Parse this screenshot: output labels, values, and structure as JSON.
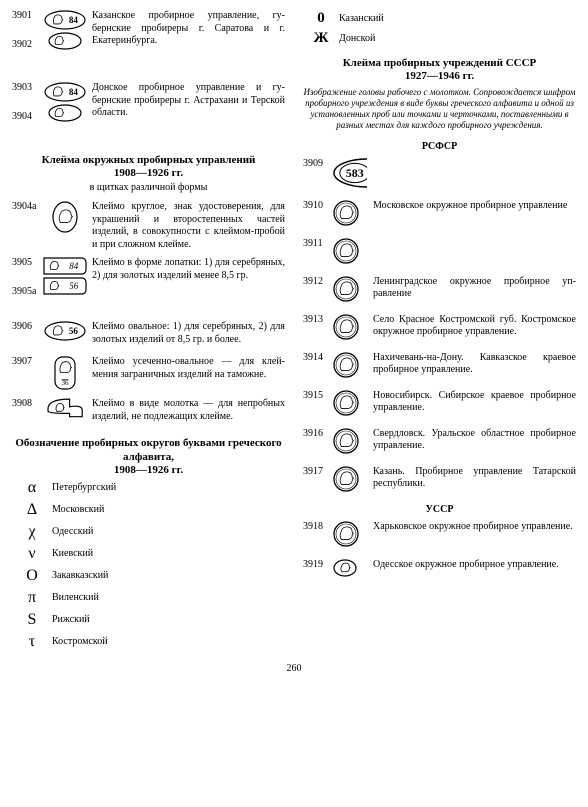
{
  "left": {
    "top_entries": [
      {
        "ids": [
          "3901",
          "3902"
        ],
        "mark_type": "double-oval-84",
        "desc": "Казанское пробирное управление, гу­бернские пробиреры г. Саратова и г. Екатеринбурга."
      },
      {
        "ids": [
          "3903",
          "3904"
        ],
        "mark_type": "double-oval-84",
        "desc": "Донское пробирное управление и гу­бернские пробиреры г. Астрахани и Тер­ской области."
      }
    ],
    "section1_title": "Клейма окружных пробирных управлений",
    "section1_years": "1908—1926 гг.",
    "section1_sub": "в щитках различной формы",
    "section1_entries": [
      {
        "ids": [
          "3904а"
        ],
        "mark_type": "shield-round",
        "desc": "Клеймо круглое, знак удостоверения, для украшений и второстепенных ча­стей изделий, в совокупности с клей­мом-пробой и при сложном клейме."
      },
      {
        "ids": [
          "3905",
          "3905а"
        ],
        "mark_type": "spade-84-56",
        "desc": "Клеймо в форме лопатки: 1) для сереб­ряных, 2) для золотых изделий менее 8,5 гр."
      },
      {
        "ids": [
          "3906"
        ],
        "mark_type": "oval-56",
        "desc": "Клеймо овальное: 1) для серебряных, 2) для золотых изделий от 8,5 гр. и бо­лее."
      },
      {
        "ids": [
          "3907"
        ],
        "mark_type": "trunc-oval",
        "desc": "Клеймо усеченно-овальное — для клей­мения заграничных изделий на тамож­не."
      },
      {
        "ids": [
          "3908"
        ],
        "mark_type": "hammer",
        "desc": "Клеймо в виде молотка — для непро­бных изделий, не подлежащих клейме."
      }
    ],
    "section2_title": "Обозначение пробирных округов буквами греческого алфавита,",
    "section2_years": "1908—1926 гг.",
    "letters": [
      {
        "sym": "α",
        "city": "Петербургский"
      },
      {
        "sym": "Δ",
        "city": "Московский"
      },
      {
        "sym": "χ",
        "city": "Одесский"
      },
      {
        "sym": "ν",
        "city": "Киевский"
      },
      {
        "sym": "Ο",
        "city": "Закавказский"
      },
      {
        "sym": "π",
        "city": "Виленский"
      },
      {
        "sym": "S",
        "city": "Рижский"
      },
      {
        "sym": "τ",
        "city": "Костромской"
      }
    ]
  },
  "right": {
    "top_letters": [
      {
        "sym": "0",
        "city": "Казанский"
      },
      {
        "sym": "Ж",
        "city": "Донской"
      }
    ],
    "main_title": "Клейма пробирных учреждений СССР",
    "main_years": "1927—1946 гг.",
    "intro": "Изображение головы рабочего с молотком. Сопровождается шифром пробирного учреждения в виде буквы греческого алфавита и одной из установленных проб или точками и черточками, поставленными в разных местах для каждого пробирного учреждения.",
    "groups": [
      {
        "head": "РСФСР",
        "entries": [
          {
            "id": "3909",
            "mark": "big-oval-583",
            "desc": ""
          },
          {
            "id": "3910",
            "mark": "circle",
            "desc": "Московское окружное пробирное управ­ление"
          },
          {
            "id": "3911",
            "mark": "circle",
            "desc": ""
          },
          {
            "id": "3912",
            "mark": "circle",
            "desc": "Ленинградское окружное пробирное уп­равление"
          },
          {
            "id": "3913",
            "mark": "circle",
            "desc": "Село Красное Костромской губ. Кост­ромское окружное пробирное управле­ние."
          },
          {
            "id": "3914",
            "mark": "circle",
            "desc": "Нахичевань-на-Дону. Кавказское крае­вое пробирное управление."
          },
          {
            "id": "3915",
            "mark": "circle",
            "desc": "Новосибирск. Сибирское краевое про­бирное управление."
          },
          {
            "id": "3916",
            "mark": "circle",
            "desc": "Свердловск. Уральское областное про­бирное управление."
          },
          {
            "id": "3917",
            "mark": "circle",
            "desc": "Казань. Пробирное управление Татар­ской республики."
          }
        ]
      },
      {
        "head": "УССР",
        "entries": [
          {
            "id": "3918",
            "mark": "circle",
            "desc": "Харьковское окружное пробирное уп­равление."
          },
          {
            "id": "3919",
            "mark": "small-oval",
            "desc": "Одесское окружное пробирное управле­ние."
          }
        ]
      }
    ]
  },
  "page_number": "260"
}
